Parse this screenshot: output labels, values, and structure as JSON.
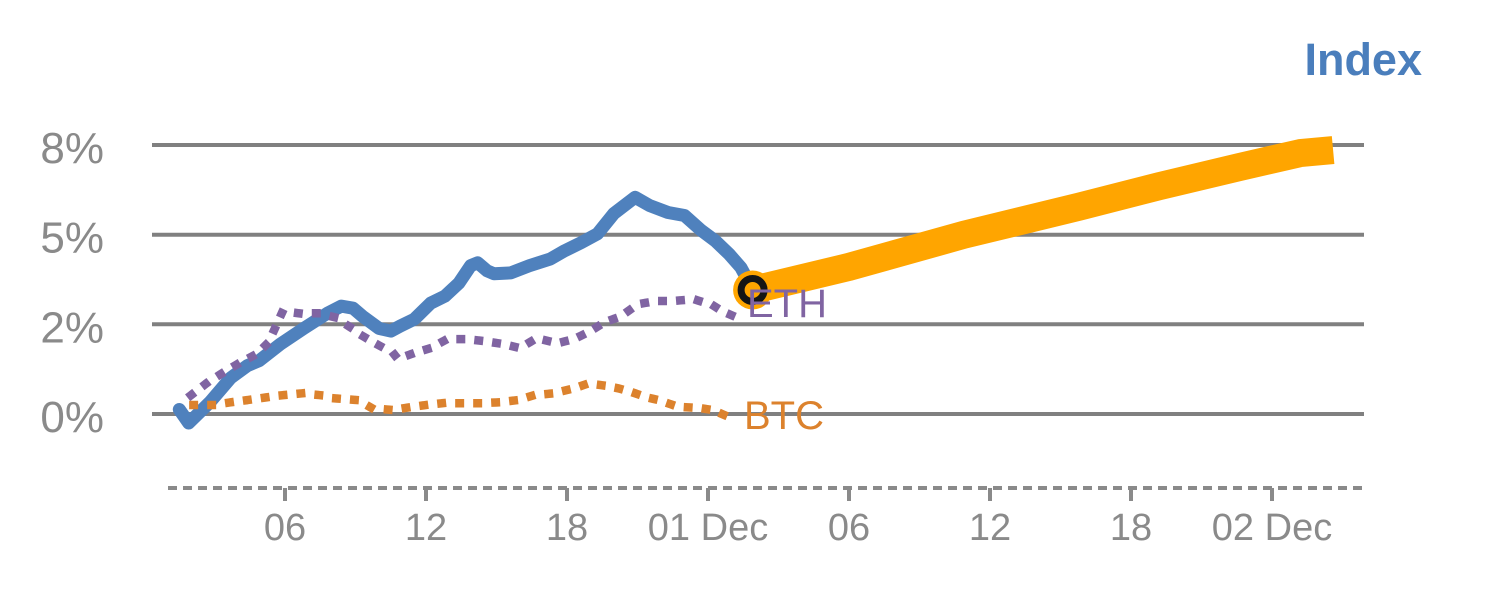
{
  "title": "Index",
  "colors": {
    "title": "#4a7ebc",
    "index_line": "#4f81bd",
    "eth_line": "#8064a2",
    "btc_line": "#dc822d",
    "projection_line": "#ffa500",
    "marker_ring": "#151515",
    "grid": "#808080",
    "axis_text": "#8a8a8a"
  },
  "chart_data": {
    "type": "line",
    "title": "Index",
    "x_axis": {
      "kind": "time",
      "tick_labels": [
        "06",
        "12",
        "18",
        "01 Dec",
        "06",
        "12",
        "18",
        "02 Dec"
      ],
      "tick_values_hours": [
        6,
        12,
        18,
        24,
        30,
        36,
        42,
        48
      ],
      "note": "hours since 00:00 of 30 Nov; 01 Dec = 24, 02 Dec = 48",
      "axis_style": "dashed"
    },
    "y_axis": {
      "tick_labels": [
        "0%",
        "2%",
        "5%",
        "8%"
      ],
      "tick_values_pct": [
        0,
        2,
        5,
        8
      ],
      "note": "ticks are equally spaced on screen despite uneven value steps",
      "grid": true
    },
    "series": [
      {
        "name": "Index",
        "color": "#4f81bd",
        "style": "solid",
        "stroke_width": 13,
        "points": [
          [
            1.5,
            0.1
          ],
          [
            1.9,
            -0.2
          ],
          [
            2.8,
            0.26
          ],
          [
            3.7,
            0.81
          ],
          [
            4.4,
            1.08
          ],
          [
            4.9,
            1.19
          ],
          [
            5.8,
            1.56
          ],
          [
            6.8,
            1.91
          ],
          [
            7.8,
            2.37
          ],
          [
            8.4,
            2.61
          ],
          [
            8.9,
            2.54
          ],
          [
            9.3,
            2.27
          ],
          [
            10.0,
            1.91
          ],
          [
            10.5,
            1.85
          ],
          [
            10.9,
            1.96
          ],
          [
            11.5,
            2.17
          ],
          [
            12.2,
            2.71
          ],
          [
            12.8,
            2.94
          ],
          [
            13.4,
            3.38
          ],
          [
            13.9,
            3.96
          ],
          [
            14.2,
            4.06
          ],
          [
            14.6,
            3.79
          ],
          [
            14.9,
            3.69
          ],
          [
            15.6,
            3.72
          ],
          [
            16.4,
            3.96
          ],
          [
            17.3,
            4.19
          ],
          [
            17.9,
            4.46
          ],
          [
            18.6,
            4.73
          ],
          [
            19.3,
            5.03
          ],
          [
            20.0,
            5.71
          ],
          [
            20.9,
            6.25
          ],
          [
            21.5,
            5.98
          ],
          [
            22.3,
            5.74
          ],
          [
            23.0,
            5.64
          ],
          [
            23.7,
            5.15
          ],
          [
            24.3,
            4.8
          ],
          [
            24.9,
            4.35
          ],
          [
            25.4,
            3.9
          ],
          [
            25.9,
            3.18
          ]
        ]
      },
      {
        "name": "ETH",
        "label_text": "ETH",
        "color": "#8064a2",
        "style": "dotted",
        "stroke_width": 8.5,
        "points": [
          [
            2.0,
            0.42
          ],
          [
            2.7,
            0.7
          ],
          [
            3.3,
            0.9
          ],
          [
            4.0,
            1.12
          ],
          [
            4.8,
            1.34
          ],
          [
            5.3,
            1.6
          ],
          [
            5.9,
            2.44
          ],
          [
            6.6,
            2.37
          ],
          [
            7.4,
            2.37
          ],
          [
            8.1,
            2.24
          ],
          [
            8.8,
            1.93
          ],
          [
            9.3,
            1.74
          ],
          [
            9.9,
            1.56
          ],
          [
            10.6,
            1.36
          ],
          [
            10.8,
            1.23
          ],
          [
            11.5,
            1.36
          ],
          [
            12.2,
            1.47
          ],
          [
            12.9,
            1.67
          ],
          [
            13.7,
            1.67
          ],
          [
            14.4,
            1.63
          ],
          [
            15.3,
            1.56
          ],
          [
            16.0,
            1.47
          ],
          [
            16.7,
            1.69
          ],
          [
            17.6,
            1.58
          ],
          [
            18.3,
            1.67
          ],
          [
            19.0,
            1.85
          ],
          [
            19.6,
            2.07
          ],
          [
            20.3,
            2.27
          ],
          [
            21.0,
            2.67
          ],
          [
            21.8,
            2.78
          ],
          [
            22.5,
            2.78
          ],
          [
            23.4,
            2.84
          ],
          [
            24.2,
            2.64
          ],
          [
            24.6,
            2.44
          ],
          [
            25.2,
            2.24
          ]
        ]
      },
      {
        "name": "BTC",
        "label_text": "BTC",
        "color": "#dc822d",
        "style": "dotted",
        "stroke_width": 8.5,
        "points": [
          [
            2.1,
            0.2
          ],
          [
            2.9,
            0.2
          ],
          [
            3.7,
            0.26
          ],
          [
            4.4,
            0.31
          ],
          [
            5.2,
            0.37
          ],
          [
            5.9,
            0.42
          ],
          [
            6.7,
            0.46
          ],
          [
            7.5,
            0.42
          ],
          [
            8.1,
            0.35
          ],
          [
            9.1,
            0.31
          ],
          [
            9.7,
            0.13
          ],
          [
            10.6,
            0.09
          ],
          [
            11.3,
            0.15
          ],
          [
            12.0,
            0.2
          ],
          [
            12.7,
            0.24
          ],
          [
            13.6,
            0.24
          ],
          [
            14.3,
            0.24
          ],
          [
            15.1,
            0.26
          ],
          [
            15.9,
            0.31
          ],
          [
            16.6,
            0.42
          ],
          [
            17.4,
            0.46
          ],
          [
            18.3,
            0.57
          ],
          [
            18.9,
            0.68
          ],
          [
            19.5,
            0.64
          ],
          [
            20.2,
            0.57
          ],
          [
            20.8,
            0.48
          ],
          [
            21.4,
            0.37
          ],
          [
            21.9,
            0.31
          ],
          [
            22.5,
            0.2
          ],
          [
            23.1,
            0.15
          ],
          [
            23.7,
            0.13
          ],
          [
            24.2,
            0.09
          ],
          [
            24.9,
            -0.07
          ],
          [
            25.3,
            -0.11
          ]
        ]
      },
      {
        "name": "Index-projection",
        "color": "#ffa500",
        "style": "solid",
        "stroke_width": 28,
        "points": [
          [
            25.9,
            3.15
          ],
          [
            30.0,
            3.92
          ],
          [
            34.9,
            5.0
          ],
          [
            39.8,
            5.94
          ],
          [
            43.2,
            6.62
          ],
          [
            46.6,
            7.26
          ],
          [
            49.2,
            7.73
          ],
          [
            50.6,
            7.83
          ]
        ]
      }
    ],
    "marker": {
      "series": "Index-projection",
      "h": 25.9,
      "v": 3.15,
      "fill": "#ffa500",
      "ring": "#151515"
    }
  }
}
